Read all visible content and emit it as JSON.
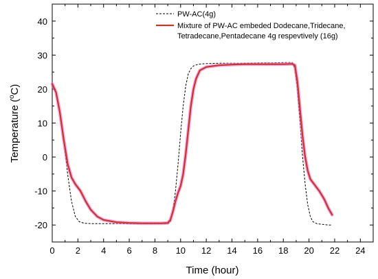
{
  "chart_data": {
    "type": "line",
    "title": "",
    "xlabel": "Time (hour)",
    "ylabel_main": "Temperature (",
    "ylabel_sup": "o",
    "ylabel_tail": "C)",
    "xlim": [
      0,
      25
    ],
    "ylim": [
      -25,
      45
    ],
    "xticks": [
      0,
      2,
      4,
      6,
      8,
      10,
      12,
      14,
      16,
      18,
      20,
      22,
      24
    ],
    "yticks": [
      -20,
      -10,
      0,
      10,
      20,
      30,
      40
    ],
    "grid": false,
    "legend_position": "top-right",
    "legend": {
      "line1": "Mixture of PW-AC embeded Dodecane,Tridecane,",
      "line2": "Tetradecane,Pentadecane 4g respevtively  (16g)"
    },
    "colors": {
      "dashed": "#000000",
      "solid": "#c0392b",
      "solid_halo": "#f06ad0"
    },
    "series": [
      {
        "name": "PW-AC(4g)",
        "style": "dashed",
        "x": [
          0,
          0.3,
          0.6,
          0.9,
          1.2,
          1.5,
          1.8,
          2.1,
          2.5,
          3,
          4,
          5,
          6,
          7,
          8,
          9,
          9.2,
          9.4,
          9.6,
          9.8,
          10,
          10.2,
          10.4,
          10.6,
          10.8,
          11,
          11.3,
          11.6,
          12,
          13,
          14,
          15,
          16,
          17,
          18,
          18.7,
          18.9,
          19.1,
          19.3,
          19.5,
          19.7,
          19.9,
          20.1,
          20.3,
          20.6,
          21,
          21.5,
          21.8
        ],
        "y": [
          21.5,
          19,
          13,
          5,
          -5,
          -13,
          -17.5,
          -19,
          -19.5,
          -19.6,
          -19.6,
          -19.6,
          -19.6,
          -19.6,
          -19.6,
          -19.6,
          -19,
          -16,
          -10,
          -2,
          7,
          15,
          21,
          24.5,
          26,
          26.8,
          27.2,
          27.4,
          27.5,
          27.6,
          27.6,
          27.6,
          27.7,
          27.7,
          27.8,
          27.8,
          26,
          20,
          10,
          0,
          -8,
          -14,
          -17.5,
          -19,
          -19.6,
          -19.8,
          -20,
          -20
        ]
      },
      {
        "name": "Mixture",
        "style": "solid",
        "x": [
          0,
          0.3,
          0.6,
          0.9,
          1.2,
          1.5,
          1.8,
          2.2,
          2.6,
          3,
          3.5,
          4,
          5,
          6,
          7,
          8,
          8.5,
          9,
          9.2,
          9.4,
          9.6,
          9.8,
          10,
          10.2,
          10.4,
          10.6,
          10.8,
          11,
          11.2,
          11.5,
          12,
          13,
          14,
          15,
          16,
          17,
          18,
          18.7,
          18.9,
          19.1,
          19.3,
          19.5,
          19.7,
          19.9,
          20.1,
          20.4,
          20.8,
          21.2,
          21.5,
          21.8
        ],
        "y": [
          21.5,
          19,
          13,
          5,
          -2,
          -6,
          -8,
          -10,
          -13,
          -15.5,
          -17.5,
          -18.5,
          -19.2,
          -19.4,
          -19.5,
          -19.5,
          -19.5,
          -19.4,
          -18.5,
          -16,
          -13,
          -10.5,
          -8.5,
          -5,
          1,
          8,
          15,
          20,
          23,
          25.5,
          26.5,
          27,
          27.2,
          27.3,
          27.3,
          27.3,
          27.3,
          27.4,
          27,
          22,
          14,
          6,
          0,
          -4,
          -6.5,
          -8,
          -10,
          -12.5,
          -15,
          -17
        ]
      }
    ]
  }
}
